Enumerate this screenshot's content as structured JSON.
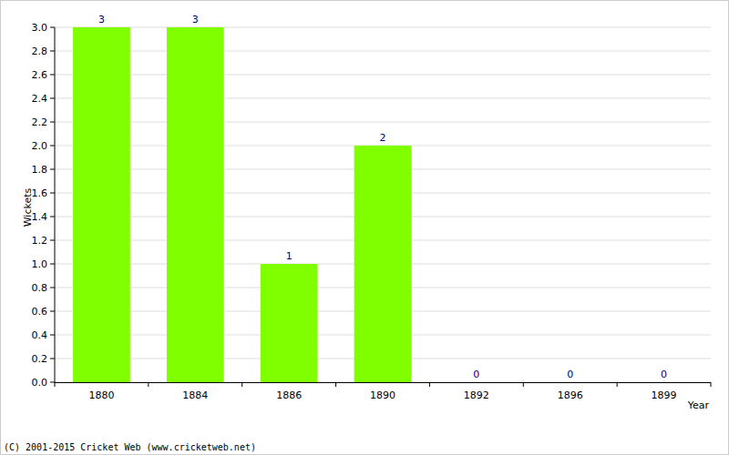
{
  "chart_data": {
    "type": "bar",
    "x_label": "Year",
    "y_label": "Wickets",
    "annotation": "(C) 2001-2015 Cricket Web (www.cricketweb.net)",
    "categories": [
      "1880",
      "1884",
      "1886",
      "1890",
      "1892",
      "1896",
      "1899"
    ],
    "values": [
      3,
      3,
      1,
      2,
      0,
      0,
      0
    ],
    "color": "#80ff00",
    "ylim": [
      0,
      3
    ],
    "yticks": [
      {
        "value": 0,
        "label": "0.0"
      },
      0.2,
      0.4,
      0.6,
      0.8,
      {
        "value": 1,
        "label": "1.0"
      },
      1.2,
      1.4,
      1.6,
      1.8,
      {
        "value": 2,
        "label": "2.0"
      },
      2.2,
      2.4,
      2.6,
      2.8,
      {
        "value": 3,
        "label": "3.0"
      }
    ],
    "grid": true,
    "data_labels": true
  }
}
